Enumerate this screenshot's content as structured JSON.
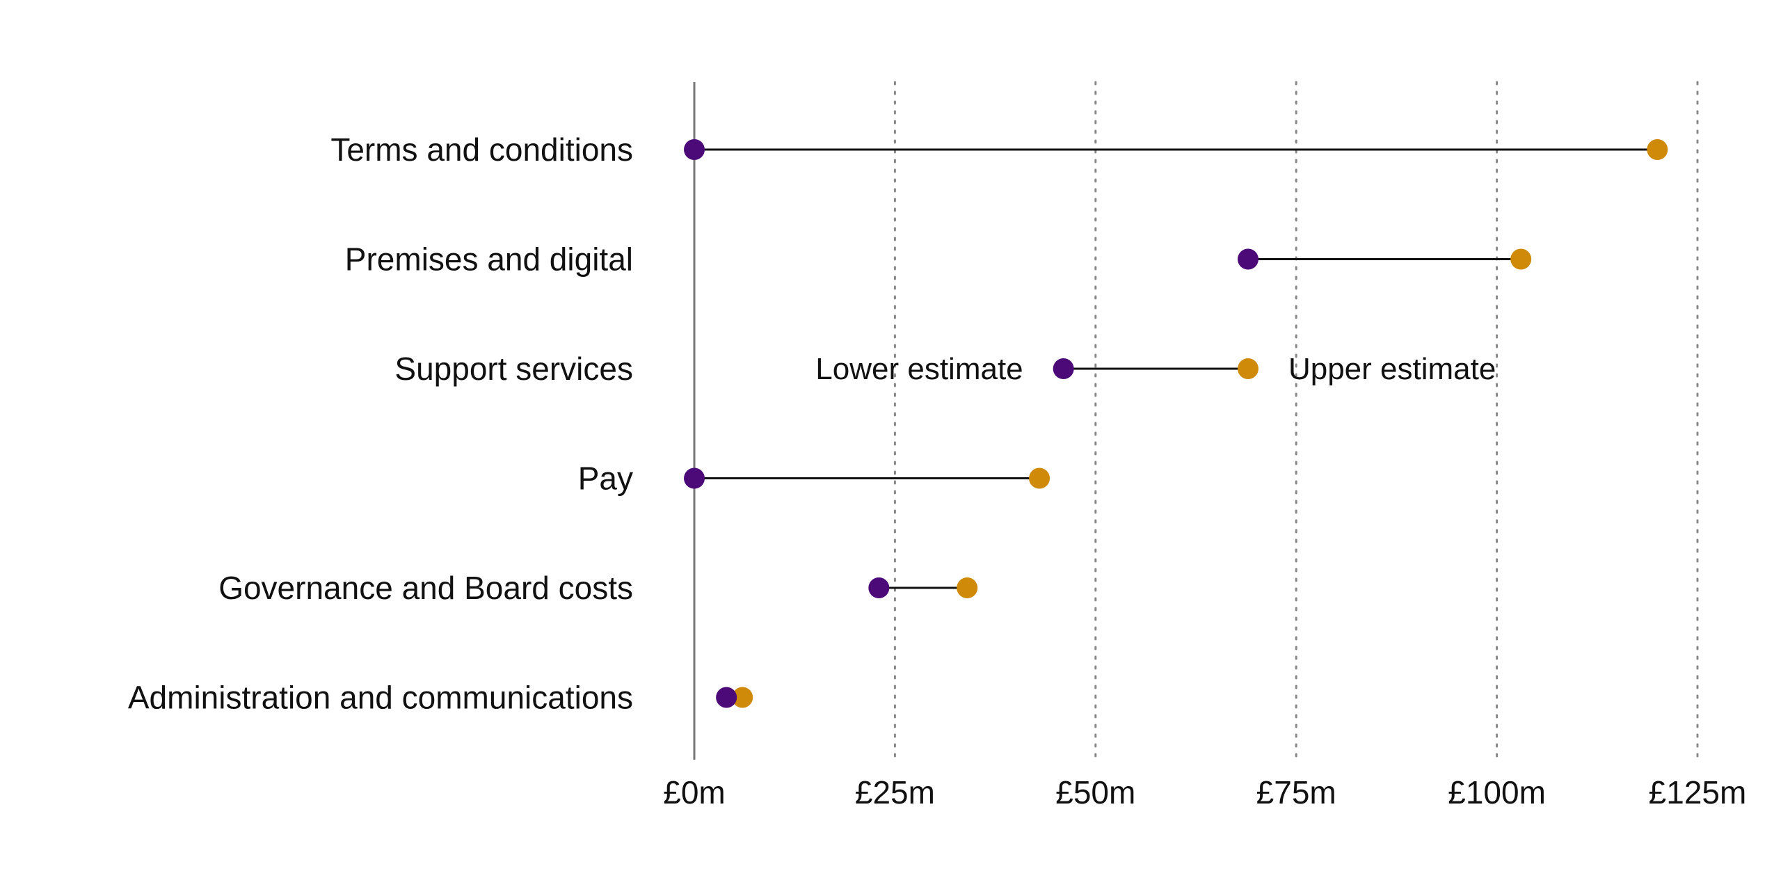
{
  "chart_data": {
    "type": "dumbbell",
    "title": "",
    "xlabel": "",
    "ylabel": "",
    "x_unit_prefix": "£",
    "x_unit_suffix": "m",
    "xlim": [
      0,
      125
    ],
    "xticks": [
      0,
      25,
      50,
      75,
      100,
      125
    ],
    "xtick_labels": [
      "£0m",
      "£25m",
      "£50m",
      "£75m",
      "£100m",
      "£125m"
    ],
    "grid": "vertical dotted",
    "categories": [
      "Terms and conditions",
      "Premises and digital",
      "Support services",
      "Pay",
      "Governance and Board costs",
      "Administration and communications"
    ],
    "series": [
      {
        "name": "Lower estimate",
        "color": "#4b0a78",
        "values": [
          0,
          69,
          46,
          0,
          23,
          4
        ]
      },
      {
        "name": "Upper estimate",
        "color": "#d08a0a",
        "values": [
          120,
          103,
          69,
          43,
          34,
          6
        ]
      }
    ],
    "annotations": {
      "row": 2,
      "lower_label": "Lower estimate",
      "upper_label": "Upper estimate"
    },
    "colors": {
      "axis": "#777777",
      "grid": "#888888",
      "connector": "#111111"
    }
  }
}
